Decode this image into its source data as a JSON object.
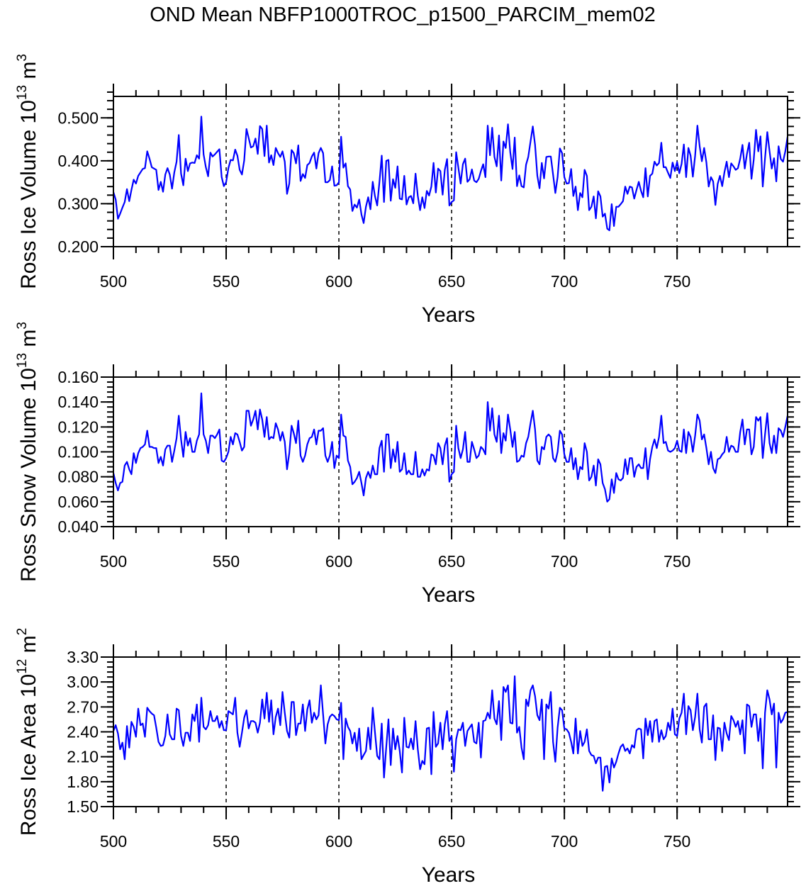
{
  "title": "OND Mean NBFP1000TROC_p1500_PARCIM_mem02",
  "line_color": "#0000ff",
  "refline_color": "#000000",
  "chart_data": [
    {
      "type": "line",
      "xlabel": "Years",
      "ylabel_parts": [
        "Ross Ice Volume 10",
        "13",
        " m",
        "3"
      ],
      "xlim": [
        500,
        799
      ],
      "ylim": [
        0.2,
        0.55
      ],
      "x_ticks": [
        500,
        550,
        600,
        650,
        700,
        750
      ],
      "x_tick_labels": [
        "500",
        "550",
        "600",
        "650",
        "700",
        "750"
      ],
      "y_ticks": [
        0.2,
        0.3,
        0.4,
        0.5
      ],
      "y_tick_labels": [
        "0.200",
        "0.300",
        "0.400",
        "0.500"
      ],
      "y_minor_step": 0.02,
      "x_minor_step": 10,
      "vertical_reference_lines": [
        550,
        600,
        650,
        700,
        750
      ],
      "grid": false,
      "x_start": 500,
      "x_step": 1,
      "values": [
        0.327,
        0.31,
        0.265,
        0.277,
        0.291,
        0.304,
        0.334,
        0.306,
        0.332,
        0.356,
        0.347,
        0.365,
        0.373,
        0.381,
        0.383,
        0.422,
        0.405,
        0.385,
        0.382,
        0.379,
        0.332,
        0.351,
        0.328,
        0.368,
        0.383,
        0.368,
        0.335,
        0.373,
        0.398,
        0.46,
        0.37,
        0.343,
        0.405,
        0.376,
        0.394,
        0.396,
        0.395,
        0.413,
        0.405,
        0.503,
        0.415,
        0.385,
        0.364,
        0.419,
        0.41,
        0.415,
        0.421,
        0.427,
        0.362,
        0.341,
        0.35,
        0.383,
        0.402,
        0.401,
        0.426,
        0.412,
        0.379,
        0.368,
        0.401,
        0.474,
        0.453,
        0.431,
        0.434,
        0.452,
        0.416,
        0.481,
        0.474,
        0.411,
        0.482,
        0.396,
        0.413,
        0.39,
        0.43,
        0.418,
        0.409,
        0.422,
        0.398,
        0.323,
        0.347,
        0.425,
        0.418,
        0.394,
        0.436,
        0.353,
        0.369,
        0.36,
        0.39,
        0.395,
        0.41,
        0.419,
        0.382,
        0.418,
        0.43,
        0.418,
        0.35,
        0.35,
        0.355,
        0.387,
        0.342,
        0.343,
        0.35,
        0.456,
        0.384,
        0.394,
        0.341,
        0.333,
        0.283,
        0.298,
        0.291,
        0.31,
        0.275,
        0.255,
        0.293,
        0.315,
        0.287,
        0.351,
        0.318,
        0.296,
        0.351,
        0.412,
        0.304,
        0.4,
        0.402,
        0.307,
        0.357,
        0.337,
        0.387,
        0.312,
        0.31,
        0.365,
        0.298,
        0.315,
        0.318,
        0.301,
        0.37,
        0.318,
        0.285,
        0.315,
        0.29,
        0.33,
        0.319,
        0.34,
        0.395,
        0.326,
        0.382,
        0.376,
        0.321,
        0.379,
        0.404,
        0.296,
        0.304,
        0.308,
        0.42,
        0.384,
        0.347,
        0.392,
        0.405,
        0.351,
        0.357,
        0.38,
        0.354,
        0.35,
        0.358,
        0.376,
        0.392,
        0.362,
        0.482,
        0.413,
        0.477,
        0.409,
        0.387,
        0.459,
        0.354,
        0.445,
        0.43,
        0.485,
        0.42,
        0.381,
        0.454,
        0.341,
        0.366,
        0.341,
        0.338,
        0.391,
        0.409,
        0.445,
        0.48,
        0.437,
        0.365,
        0.336,
        0.395,
        0.359,
        0.409,
        0.41,
        0.41,
        0.368,
        0.325,
        0.362,
        0.429,
        0.418,
        0.362,
        0.347,
        0.348,
        0.381,
        0.318,
        0.34,
        0.285,
        0.325,
        0.315,
        0.379,
        0.365,
        0.285,
        0.293,
        0.317,
        0.266,
        0.329,
        0.317,
        0.27,
        0.277,
        0.242,
        0.238,
        0.299,
        0.248,
        0.293,
        0.293,
        0.299,
        0.306,
        0.34,
        0.323,
        0.34,
        0.338,
        0.312,
        0.332,
        0.351,
        0.33,
        0.315,
        0.383,
        0.317,
        0.365,
        0.37,
        0.398,
        0.389,
        0.395,
        0.442,
        0.385,
        0.385,
        0.372,
        0.36,
        0.396,
        0.376,
        0.397,
        0.371,
        0.393,
        0.438,
        0.362,
        0.43,
        0.412,
        0.363,
        0.412,
        0.482,
        0.434,
        0.399,
        0.43,
        0.396,
        0.34,
        0.362,
        0.352,
        0.297,
        0.346,
        0.365,
        0.341,
        0.373,
        0.398,
        0.362,
        0.394,
        0.387,
        0.379,
        0.383,
        0.405,
        0.437,
        0.382,
        0.416,
        0.442,
        0.358,
        0.403,
        0.472,
        0.422,
        0.457,
        0.34,
        0.406,
        0.467,
        0.422,
        0.382,
        0.406,
        0.352,
        0.434,
        0.404,
        0.398,
        0.422,
        0.456
      ]
    },
    {
      "type": "line",
      "xlabel": "Years",
      "ylabel_parts": [
        "Ross Snow Volume 10",
        "13",
        " m",
        "3"
      ],
      "xlim": [
        500,
        799
      ],
      "ylim": [
        0.04,
        0.16
      ],
      "x_ticks": [
        500,
        550,
        600,
        650,
        700,
        750
      ],
      "x_tick_labels": [
        "500",
        "550",
        "600",
        "650",
        "700",
        "750"
      ],
      "y_ticks": [
        0.04,
        0.06,
        0.08,
        0.1,
        0.12,
        0.14,
        0.16
      ],
      "y_tick_labels": [
        "0.040",
        "0.060",
        "0.080",
        "0.100",
        "0.120",
        "0.140",
        "0.160"
      ],
      "y_minor_step": 0.004,
      "x_minor_step": 10,
      "vertical_reference_lines": [
        550,
        600,
        650,
        700,
        750
      ],
      "grid": false,
      "x_start": 500,
      "x_step": 1,
      "values": [
        0.083,
        0.075,
        0.069,
        0.075,
        0.076,
        0.089,
        0.092,
        0.086,
        0.082,
        0.099,
        0.091,
        0.099,
        0.103,
        0.104,
        0.106,
        0.117,
        0.104,
        0.104,
        0.103,
        0.103,
        0.091,
        0.096,
        0.089,
        0.102,
        0.105,
        0.105,
        0.092,
        0.101,
        0.111,
        0.129,
        0.11,
        0.096,
        0.116,
        0.105,
        0.111,
        0.1,
        0.1,
        0.109,
        0.114,
        0.147,
        0.114,
        0.109,
        0.099,
        0.113,
        0.113,
        0.111,
        0.114,
        0.118,
        0.093,
        0.092,
        0.095,
        0.1,
        0.112,
        0.106,
        0.115,
        0.114,
        0.108,
        0.101,
        0.104,
        0.133,
        0.133,
        0.121,
        0.126,
        0.133,
        0.118,
        0.134,
        0.126,
        0.112,
        0.128,
        0.11,
        0.112,
        0.111,
        0.123,
        0.118,
        0.109,
        0.116,
        0.108,
        0.086,
        0.099,
        0.121,
        0.115,
        0.107,
        0.125,
        0.097,
        0.092,
        0.097,
        0.106,
        0.111,
        0.112,
        0.118,
        0.106,
        0.117,
        0.117,
        0.119,
        0.097,
        0.092,
        0.097,
        0.108,
        0.087,
        0.097,
        0.095,
        0.13,
        0.113,
        0.112,
        0.093,
        0.088,
        0.074,
        0.076,
        0.079,
        0.084,
        0.075,
        0.065,
        0.079,
        0.084,
        0.079,
        0.089,
        0.082,
        0.082,
        0.103,
        0.109,
        0.084,
        0.114,
        0.114,
        0.087,
        0.102,
        0.092,
        0.108,
        0.084,
        0.086,
        0.099,
        0.082,
        0.085,
        0.082,
        0.082,
        0.1,
        0.08,
        0.08,
        0.086,
        0.081,
        0.086,
        0.085,
        0.098,
        0.097,
        0.09,
        0.107,
        0.103,
        0.09,
        0.105,
        0.111,
        0.076,
        0.082,
        0.084,
        0.121,
        0.103,
        0.095,
        0.102,
        0.116,
        0.092,
        0.092,
        0.108,
        0.102,
        0.095,
        0.097,
        0.104,
        0.102,
        0.098,
        0.14,
        0.117,
        0.135,
        0.114,
        0.108,
        0.129,
        0.099,
        0.115,
        0.109,
        0.13,
        0.118,
        0.104,
        0.116,
        0.092,
        0.093,
        0.097,
        0.096,
        0.107,
        0.112,
        0.123,
        0.133,
        0.118,
        0.093,
        0.09,
        0.104,
        0.102,
        0.112,
        0.114,
        0.112,
        0.095,
        0.092,
        0.1,
        0.117,
        0.114,
        0.098,
        0.092,
        0.092,
        0.103,
        0.086,
        0.095,
        0.078,
        0.088,
        0.086,
        0.107,
        0.1,
        0.077,
        0.08,
        0.089,
        0.073,
        0.094,
        0.09,
        0.075,
        0.07,
        0.06,
        0.062,
        0.078,
        0.067,
        0.083,
        0.078,
        0.077,
        0.079,
        0.094,
        0.082,
        0.095,
        0.095,
        0.08,
        0.088,
        0.09,
        0.087,
        0.087,
        0.103,
        0.078,
        0.094,
        0.104,
        0.11,
        0.103,
        0.112,
        0.129,
        0.107,
        0.108,
        0.101,
        0.1,
        0.101,
        0.103,
        0.109,
        0.101,
        0.1,
        0.118,
        0.099,
        0.116,
        0.112,
        0.1,
        0.113,
        0.13,
        0.125,
        0.11,
        0.114,
        0.103,
        0.09,
        0.1,
        0.087,
        0.083,
        0.094,
        0.095,
        0.098,
        0.1,
        0.112,
        0.1,
        0.105,
        0.104,
        0.1,
        0.1,
        0.116,
        0.126,
        0.106,
        0.118,
        0.118,
        0.098,
        0.104,
        0.128,
        0.125,
        0.128,
        0.095,
        0.114,
        0.131,
        0.107,
        0.099,
        0.113,
        0.099,
        0.119,
        0.117,
        0.112,
        0.12,
        0.129
      ]
    },
    {
      "type": "line",
      "xlabel": "Years",
      "ylabel_parts": [
        "Ross Ice Area 10",
        "12",
        " m",
        "2"
      ],
      "xlim": [
        500,
        799
      ],
      "ylim": [
        1.5,
        3.3
      ],
      "x_ticks": [
        500,
        550,
        600,
        650,
        700,
        750
      ],
      "x_tick_labels": [
        "500",
        "550",
        "600",
        "650",
        "700",
        "750"
      ],
      "y_ticks": [
        1.5,
        1.8,
        2.1,
        2.4,
        2.7,
        3.0,
        3.3
      ],
      "y_tick_labels": [
        "1.50",
        "1.80",
        "2.10",
        "2.40",
        "2.70",
        "3.00",
        "3.30"
      ],
      "y_minor_step": 0.06,
      "x_minor_step": 10,
      "vertical_reference_lines": [
        550,
        600,
        650,
        700,
        750
      ],
      "grid": false,
      "x_start": 500,
      "x_step": 1,
      "values": [
        2.41,
        2.48,
        2.38,
        2.19,
        2.27,
        2.07,
        2.47,
        2.21,
        2.52,
        2.46,
        2.34,
        2.68,
        2.48,
        2.5,
        2.34,
        2.69,
        2.65,
        2.62,
        2.6,
        2.45,
        2.28,
        2.23,
        2.24,
        2.35,
        2.61,
        2.37,
        2.31,
        2.31,
        2.68,
        2.66,
        2.35,
        2.23,
        2.39,
        2.39,
        2.29,
        2.61,
        2.53,
        2.73,
        2.28,
        2.81,
        2.46,
        2.43,
        2.48,
        2.65,
        2.53,
        2.53,
        2.59,
        2.45,
        2.53,
        2.42,
        2.42,
        2.65,
        2.63,
        2.61,
        2.81,
        2.39,
        2.22,
        2.39,
        2.57,
        2.66,
        2.44,
        2.53,
        2.53,
        2.51,
        2.39,
        2.51,
        2.79,
        2.56,
        2.87,
        2.52,
        2.78,
        2.37,
        2.58,
        2.68,
        2.48,
        2.88,
        2.63,
        2.41,
        2.33,
        2.76,
        2.76,
        2.36,
        2.5,
        2.5,
        2.73,
        2.41,
        2.67,
        2.78,
        2.51,
        2.63,
        2.55,
        2.6,
        2.96,
        2.61,
        2.26,
        2.49,
        2.58,
        2.61,
        2.59,
        2.55,
        2.54,
        2.75,
        2.07,
        2.56,
        2.46,
        2.41,
        2.26,
        2.39,
        2.17,
        2.44,
        2.07,
        2.12,
        2.17,
        2.45,
        2.19,
        2.69,
        2.4,
        2.11,
        2.07,
        2.5,
        1.85,
        2.22,
        2.55,
        2.0,
        2.44,
        2.19,
        2.35,
        2.17,
        1.91,
        2.57,
        2.22,
        2.21,
        2.32,
        2.19,
        2.53,
        2.19,
        1.95,
        2.05,
        2.01,
        2.44,
        2.45,
        1.89,
        2.64,
        2.22,
        2.26,
        2.51,
        2.19,
        2.49,
        2.65,
        2.29,
        2.35,
        1.92,
        2.31,
        2.43,
        2.42,
        2.51,
        2.23,
        2.41,
        2.45,
        2.49,
        2.28,
        2.26,
        2.51,
        2.09,
        2.53,
        2.54,
        2.63,
        2.56,
        2.9,
        2.56,
        2.49,
        2.77,
        2.3,
        2.94,
        2.88,
        2.96,
        2.51,
        2.5,
        3.07,
        2.39,
        2.46,
        2.21,
        2.07,
        2.79,
        2.71,
        2.9,
        2.96,
        2.83,
        2.6,
        2.54,
        2.79,
        2.07,
        2.73,
        2.68,
        2.88,
        2.28,
        2.04,
        2.45,
        2.69,
        2.66,
        2.44,
        2.43,
        2.39,
        2.28,
        2.14,
        2.56,
        2.14,
        2.41,
        2.23,
        2.28,
        2.43,
        2.17,
        2.12,
        2.11,
        2.02,
        2.09,
        2.09,
        1.69,
        1.98,
        1.99,
        1.79,
        2.08,
        1.97,
        2.04,
        2.14,
        2.22,
        2.25,
        2.17,
        2.2,
        2.14,
        2.24,
        2.21,
        2.42,
        2.44,
        2.43,
        2.08,
        2.56,
        2.36,
        2.53,
        2.28,
        2.53,
        2.55,
        2.28,
        2.42,
        2.31,
        2.35,
        2.51,
        2.42,
        2.68,
        2.37,
        2.35,
        2.56,
        2.63,
        2.86,
        2.37,
        2.71,
        2.66,
        2.42,
        2.58,
        2.86,
        2.43,
        2.27,
        2.7,
        2.74,
        2.31,
        2.31,
        2.6,
        2.06,
        2.45,
        2.44,
        2.17,
        2.51,
        2.38,
        2.3,
        2.59,
        2.54,
        2.46,
        2.53,
        2.37,
        2.54,
        2.14,
        2.73,
        2.71,
        2.46,
        2.61,
        2.61,
        2.29,
        2.56,
        1.96,
        2.63,
        2.9,
        2.79,
        2.61,
        2.74,
        1.97,
        2.63,
        2.51,
        2.55,
        2.63,
        2.64
      ]
    }
  ]
}
